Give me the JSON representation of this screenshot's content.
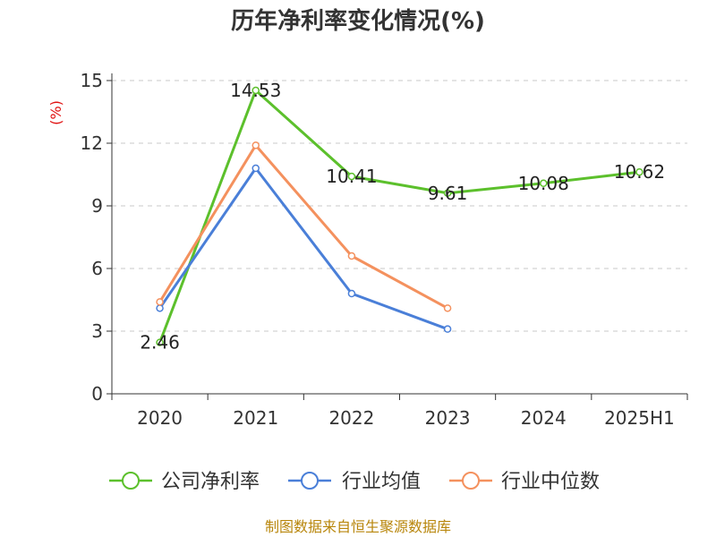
{
  "chart_data": {
    "type": "line",
    "title": "历年净利率变化情况(%)",
    "ylabel": "(%)",
    "categories": [
      "2020",
      "2021",
      "2022",
      "2023",
      "2024",
      "2025H1"
    ],
    "ylim": [
      0,
      15
    ],
    "yticks": [
      0,
      3,
      6,
      9,
      12,
      15
    ],
    "grid": true,
    "legend_position": "bottom",
    "series": [
      {
        "name": "公司净利率",
        "color": "#5cc02c",
        "values": [
          2.46,
          14.53,
          10.41,
          9.61,
          10.08,
          10.62
        ],
        "labels": [
          "2.46",
          "14.53",
          "10.41",
          "9.61",
          "10.08",
          "10.62"
        ]
      },
      {
        "name": "行业均值",
        "color": "#4a7fd8",
        "values": [
          4.1,
          10.8,
          4.8,
          3.1,
          null,
          null
        ]
      },
      {
        "name": "行业中位数",
        "color": "#f4915e",
        "values": [
          4.4,
          11.9,
          6.6,
          4.1,
          null,
          null
        ]
      }
    ],
    "source": "制图数据来自恒生聚源数据库"
  }
}
